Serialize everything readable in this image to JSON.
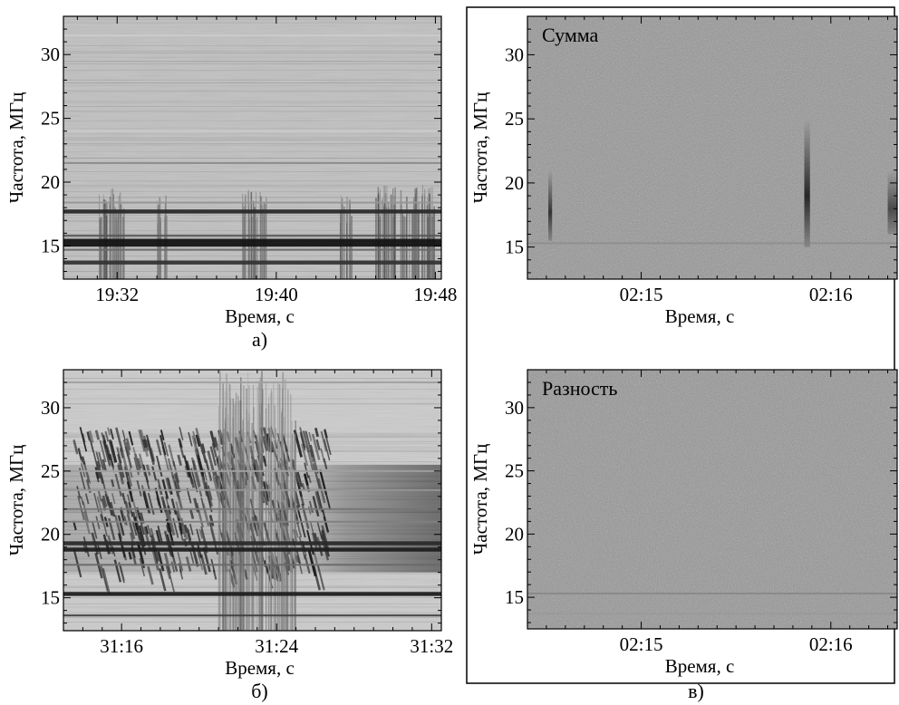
{
  "chart_data": [
    {
      "id": "a",
      "type": "heatmap",
      "caption": "а)",
      "xlabel": "Время, с",
      "ylabel": "Частота, МГц",
      "inset_label": "",
      "x_tick_labels": [
        "19:32",
        "19:40",
        "19:48"
      ],
      "x_tick_values": [
        32,
        40,
        48
      ],
      "xlim": [
        29.3,
        48.3
      ],
      "y_tick_labels": [
        "15",
        "20",
        "25",
        "30"
      ],
      "y_tick_values": [
        15,
        20,
        25,
        30
      ],
      "ylim": [
        12.4,
        33
      ],
      "background_level": 0.2,
      "horizontal_bands_mhz": [
        {
          "f": 13.7,
          "level": 0.85
        },
        {
          "f": 14.7,
          "level": 0.6
        },
        {
          "f": 15.1,
          "level": 1.0
        },
        {
          "f": 15.4,
          "level": 1.0
        },
        {
          "f": 15.8,
          "level": 0.7
        },
        {
          "f": 17.7,
          "level": 0.9
        },
        {
          "f": 18.4,
          "level": 0.4
        },
        {
          "f": 21.5,
          "level": 0.45
        },
        {
          "f": 24.0,
          "level": 0.15
        },
        {
          "f": 26.5,
          "level": 0.2
        },
        {
          "f": 30.0,
          "level": 0.2
        },
        {
          "f": 31.5,
          "level": 0.15
        }
      ],
      "burst_groups": [
        {
          "t_start": 31.0,
          "t_end": 32.4,
          "f_low": 12.4,
          "f_high": 19.5,
          "level": 0.5
        },
        {
          "t_start": 34.0,
          "t_end": 34.5,
          "f_low": 12.4,
          "f_high": 19.0,
          "level": 0.4
        },
        {
          "t_start": 38.3,
          "t_end": 39.5,
          "f_low": 12.4,
          "f_high": 19.5,
          "level": 0.45
        },
        {
          "t_start": 43.2,
          "t_end": 43.8,
          "f_low": 12.4,
          "f_high": 19.0,
          "level": 0.45
        },
        {
          "t_start": 45.0,
          "t_end": 48.0,
          "f_low": 12.4,
          "f_high": 19.8,
          "level": 0.5
        }
      ]
    },
    {
      "id": "b",
      "type": "heatmap",
      "caption": "б)",
      "xlabel": "Время, с",
      "ylabel": "Частота, МГц",
      "inset_label": "",
      "x_tick_labels": [
        "31:16",
        "31:24",
        "31:32"
      ],
      "x_tick_values": [
        16,
        24,
        32
      ],
      "xlim": [
        13.0,
        32.5
      ],
      "y_tick_labels": [
        "15",
        "20",
        "25",
        "30"
      ],
      "y_tick_values": [
        15,
        20,
        25,
        30
      ],
      "ylim": [
        12.4,
        33
      ],
      "background_level": 0.15,
      "horizontal_bands_mhz": [
        {
          "f": 13.6,
          "level": 0.8
        },
        {
          "f": 15.3,
          "level": 0.95
        },
        {
          "f": 17.6,
          "level": 0.6
        },
        {
          "f": 18.8,
          "level": 0.95
        },
        {
          "f": 19.3,
          "level": 0.9
        },
        {
          "f": 21.0,
          "level": 0.5
        },
        {
          "f": 22.0,
          "level": 0.55
        },
        {
          "f": 23.5,
          "level": 0.4
        },
        {
          "f": 25.0,
          "level": 0.35
        },
        {
          "f": 32.0,
          "level": 0.35
        }
      ],
      "burst_groups": [
        {
          "t_start": 13.5,
          "t_end": 26.5,
          "f_low": 17.0,
          "f_high": 28.5,
          "level": 0.65
        },
        {
          "t_start": 21.0,
          "t_end": 25.0,
          "f_low": 12.4,
          "f_high": 33.0,
          "level": 0.35
        }
      ]
    },
    {
      "id": "v-sum",
      "type": "heatmap",
      "caption": "",
      "xlabel": "Время, с",
      "ylabel": "Частота, МГц",
      "inset_label": "Сумма",
      "x_tick_labels": [
        "02:15",
        "02:16"
      ],
      "x_tick_values": [
        15,
        16
      ],
      "xlim": [
        14.4,
        16.35
      ],
      "y_tick_labels": [
        "15",
        "20",
        "25",
        "30"
      ],
      "y_tick_values": [
        15,
        20,
        25,
        30
      ],
      "ylim": [
        12.5,
        33
      ],
      "background_level": 0.4,
      "horizontal_bands_mhz": [
        {
          "f": 15.3,
          "level": 0.5
        }
      ],
      "burst_groups": [
        {
          "t_start": 14.51,
          "t_end": 14.53,
          "f_low": 15.5,
          "f_high": 21.0,
          "level": 0.75
        },
        {
          "t_start": 15.86,
          "t_end": 15.89,
          "f_low": 15.0,
          "f_high": 25.0,
          "level": 0.85
        },
        {
          "t_start": 16.3,
          "t_end": 16.35,
          "f_low": 16.0,
          "f_high": 21.0,
          "level": 0.6
        }
      ]
    },
    {
      "id": "v-diff",
      "type": "heatmap",
      "caption": "",
      "xlabel": "Время, с",
      "ylabel": "Частота, МГц",
      "inset_label": "Разность",
      "x_tick_labels": [
        "02:15",
        "02:16"
      ],
      "x_tick_values": [
        15,
        16
      ],
      "xlim": [
        14.4,
        16.35
      ],
      "y_tick_labels": [
        "15",
        "20",
        "25",
        "30"
      ],
      "y_tick_values": [
        15,
        20,
        25,
        30
      ],
      "ylim": [
        12.5,
        33
      ],
      "background_level": 0.4,
      "horizontal_bands_mhz": [
        {
          "f": 15.3,
          "level": 0.55
        },
        {
          "f": 13.7,
          "level": 0.4
        }
      ],
      "burst_groups": []
    }
  ],
  "group_caption": "в)"
}
